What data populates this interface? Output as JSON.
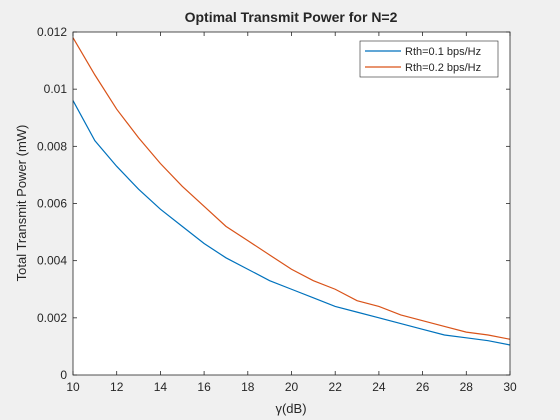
{
  "chart_data": {
    "type": "line",
    "title": "Optimal Transmit Power for N=2",
    "xlabel": "γ(dB)",
    "ylabel": "Total Transmit Power (mW)",
    "xlim": [
      10,
      30
    ],
    "ylim": [
      0,
      0.012
    ],
    "xticks": [
      10,
      12,
      14,
      16,
      18,
      20,
      22,
      24,
      26,
      28,
      30
    ],
    "xtick_labels": [
      "10",
      "12",
      "14",
      "16",
      "18",
      "20",
      "22",
      "24",
      "26",
      "28",
      "30"
    ],
    "yticks": [
      0,
      0.002,
      0.004,
      0.006,
      0.008,
      0.01,
      0.012
    ],
    "ytick_labels": [
      "0",
      "0.002",
      "0.004",
      "0.006",
      "0.008",
      "0.01",
      "0.012"
    ],
    "grid": false,
    "legend_position": "top-right",
    "x": [
      10,
      11,
      12,
      13,
      14,
      15,
      16,
      17,
      18,
      19,
      20,
      21,
      22,
      23,
      24,
      25,
      26,
      27,
      28,
      29,
      30
    ],
    "series": [
      {
        "name": "Rth=0.1 bps/Hz",
        "color": "#0072bd",
        "values": [
          0.0096,
          0.0082,
          0.0073,
          0.0065,
          0.0058,
          0.0052,
          0.0046,
          0.0041,
          0.0037,
          0.0033,
          0.003,
          0.0027,
          0.0024,
          0.0022,
          0.002,
          0.0018,
          0.0016,
          0.0014,
          0.0013,
          0.0012,
          0.00105
        ]
      },
      {
        "name": "Rth=0.2 bps/Hz",
        "color": "#d95319",
        "values": [
          0.0118,
          0.0105,
          0.0093,
          0.0083,
          0.0074,
          0.0066,
          0.0059,
          0.0052,
          0.0047,
          0.0042,
          0.0037,
          0.0033,
          0.003,
          0.0026,
          0.0024,
          0.0021,
          0.0019,
          0.0017,
          0.0015,
          0.0014,
          0.00125
        ]
      }
    ]
  }
}
